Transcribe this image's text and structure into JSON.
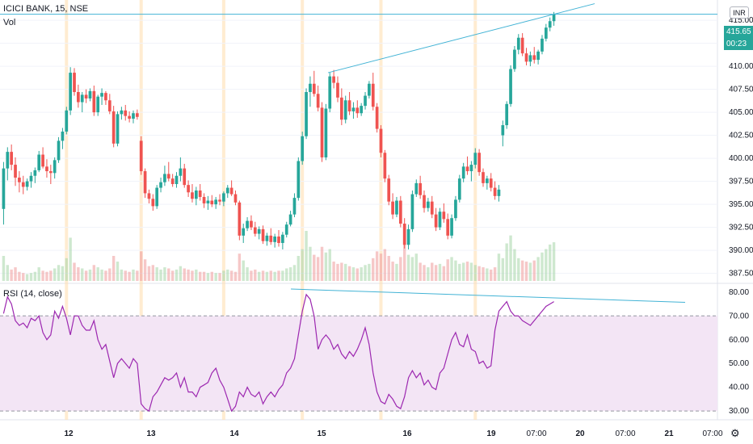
{
  "header": {
    "symbol": "ICICI BANK, 15, NSE",
    "volume_label": "Vol"
  },
  "rsi_header": {
    "label": "RSI (14, close)"
  },
  "currency_button": "INR",
  "price_tag": {
    "price": "415.65",
    "countdown": "00:23"
  },
  "settings_icon": "gear-icon",
  "colors": {
    "up": "#26a69a",
    "down": "#ef5350",
    "trendline": "#42b3d5",
    "rsi_line": "#9c27b0",
    "rsi_band": "#f3e5f5",
    "session": "#ffe0b2"
  },
  "chart_data": [
    {
      "type": "candlestick",
      "title": "ICICI BANK, 15, NSE",
      "ylim": [
        386.5,
        417.2
      ],
      "y_ticks": [
        "387.50",
        "390.00",
        "392.50",
        "395.00",
        "397.50",
        "400.00",
        "402.50",
        "405.00",
        "407.50",
        "410.00",
        "412.50",
        "415.00"
      ],
      "x_tick_labels": [
        "12",
        "13",
        "14",
        "15",
        "16",
        "19",
        "07:00",
        "20",
        "07:00",
        "21",
        "07:00"
      ],
      "ohlc": [
        [
          394.5,
          399.6,
          392.8,
          398.9
        ],
        [
          398.9,
          401.2,
          397.6,
          400.7
        ],
        [
          400.7,
          401.5,
          398.7,
          399.3
        ],
        [
          399.3,
          400.1,
          397.0,
          397.9
        ],
        [
          397.9,
          398.6,
          396.3,
          397.4
        ],
        [
          397.4,
          398.1,
          396.1,
          396.9
        ],
        [
          396.9,
          397.8,
          396.5,
          397.5
        ],
        [
          397.5,
          398.5,
          396.8,
          398.1
        ],
        [
          398.1,
          399.0,
          397.3,
          398.7
        ],
        [
          398.7,
          400.8,
          398.5,
          400.4
        ],
        [
          400.4,
          401.2,
          398.9,
          399.1
        ],
        [
          399.1,
          399.9,
          397.9,
          398.6
        ],
        [
          398.6,
          399.3,
          397.2,
          398.4
        ],
        [
          398.4,
          400.1,
          397.8,
          399.8
        ],
        [
          399.8,
          402.3,
          399.5,
          401.9
        ],
        [
          401.9,
          403.3,
          401.0,
          402.9
        ],
        [
          402.9,
          405.6,
          402.6,
          405.2
        ],
        [
          405.2,
          409.9,
          404.7,
          409.3
        ],
        [
          409.3,
          409.8,
          406.8,
          407.2
        ],
        [
          407.2,
          408.0,
          405.5,
          406.1
        ],
        [
          406.1,
          407.2,
          405.0,
          406.9
        ],
        [
          406.9,
          407.5,
          406.0,
          406.5
        ],
        [
          406.5,
          407.6,
          406.2,
          407.3
        ],
        [
          407.3,
          407.9,
          404.6,
          405.0
        ],
        [
          405.0,
          406.9,
          404.6,
          406.7
        ],
        [
          406.7,
          407.6,
          405.8,
          407.1
        ],
        [
          407.1,
          407.3,
          405.8,
          406.3
        ],
        [
          406.3,
          407.0,
          404.8,
          405.1
        ],
        [
          405.1,
          405.7,
          401.2,
          401.6
        ],
        [
          401.6,
          405.1,
          401.3,
          404.8
        ],
        [
          404.8,
          405.6,
          404.2,
          405.2
        ],
        [
          405.2,
          405.8,
          404.1,
          404.6
        ],
        [
          404.6,
          405.1,
          403.9,
          404.3
        ],
        [
          404.3,
          405.2,
          403.8,
          404.9
        ],
        [
          404.9,
          405.3,
          404.2,
          404.5
        ],
        [
          401.9,
          402.4,
          398.2,
          398.6
        ],
        [
          398.6,
          398.9,
          395.7,
          396.2
        ],
        [
          396.2,
          396.6,
          395.1,
          395.6
        ],
        [
          395.6,
          396.1,
          394.3,
          394.8
        ],
        [
          394.8,
          397.1,
          394.5,
          396.8
        ],
        [
          396.8,
          397.9,
          396.3,
          397.4
        ],
        [
          397.4,
          399.2,
          397.0,
          398.3
        ],
        [
          398.3,
          399.6,
          397.5,
          397.8
        ],
        [
          397.8,
          398.3,
          396.9,
          397.2
        ],
        [
          397.2,
          398.5,
          396.8,
          398.1
        ],
        [
          398.1,
          400.1,
          397.5,
          398.9
        ],
        [
          398.9,
          399.4,
          396.8,
          397.1
        ],
        [
          397.1,
          397.6,
          395.8,
          396.3
        ],
        [
          396.3,
          397.2,
          395.2,
          395.6
        ],
        [
          395.6,
          396.9,
          394.9,
          396.5
        ],
        [
          396.5,
          397.2,
          395.4,
          395.8
        ],
        [
          395.8,
          396.2,
          394.6,
          395.1
        ],
        [
          395.1,
          395.9,
          394.4,
          395.4
        ],
        [
          395.4,
          396.0,
          394.7,
          395.0
        ],
        [
          395.0,
          395.8,
          394.5,
          395.5
        ],
        [
          395.5,
          396.1,
          394.9,
          395.3
        ],
        [
          395.3,
          396.4,
          394.8,
          396.2
        ],
        [
          396.2,
          397.1,
          395.7,
          396.8
        ],
        [
          396.8,
          397.6,
          395.9,
          396.1
        ],
        [
          396.1,
          396.5,
          394.9,
          395.2
        ],
        [
          395.2,
          395.4,
          391.1,
          391.6
        ],
        [
          391.6,
          392.9,
          390.8,
          392.4
        ],
        [
          392.4,
          393.6,
          392.1,
          393.2
        ],
        [
          393.2,
          393.8,
          392.2,
          392.5
        ],
        [
          392.5,
          393.1,
          391.5,
          391.8
        ],
        [
          391.8,
          392.6,
          391.2,
          392.3
        ],
        [
          392.3,
          392.7,
          390.7,
          391.0
        ],
        [
          391.0,
          391.9,
          390.5,
          391.6
        ],
        [
          391.6,
          392.4,
          390.6,
          390.9
        ],
        [
          390.9,
          391.8,
          390.3,
          391.5
        ],
        [
          391.5,
          392.2,
          390.4,
          390.8
        ],
        [
          390.8,
          392.0,
          390.1,
          391.7
        ],
        [
          391.7,
          393.1,
          391.4,
          392.8
        ],
        [
          392.8,
          394.3,
          392.6,
          393.9
        ],
        [
          393.9,
          396.2,
          393.6,
          395.7
        ],
        [
          395.7,
          400.1,
          395.4,
          399.7
        ],
        [
          399.7,
          402.9,
          399.3,
          402.4
        ],
        [
          402.4,
          407.6,
          402.1,
          407.2
        ],
        [
          407.2,
          408.9,
          405.6,
          408.1
        ],
        [
          408.1,
          409.5,
          406.7,
          407.0
        ],
        [
          407.0,
          407.9,
          405.1,
          405.5
        ],
        [
          405.5,
          406.1,
          399.6,
          400.1
        ],
        [
          400.1,
          405.9,
          399.8,
          405.4
        ],
        [
          405.4,
          409.3,
          405.0,
          408.9
        ],
        [
          408.9,
          409.6,
          407.6,
          408.2
        ],
        [
          408.2,
          408.9,
          406.1,
          406.6
        ],
        [
          406.6,
          407.6,
          403.6,
          404.2
        ],
        [
          404.2,
          406.8,
          403.8,
          406.3
        ],
        [
          406.3,
          407.2,
          404.7,
          405.1
        ],
        [
          405.1,
          406.1,
          404.3,
          405.5
        ],
        [
          405.5,
          406.3,
          404.4,
          404.9
        ],
        [
          404.9,
          406.0,
          404.6,
          405.7
        ],
        [
          405.7,
          407.2,
          405.3,
          406.8
        ],
        [
          406.8,
          408.4,
          406.5,
          408.1
        ],
        [
          408.1,
          409.3,
          405.2,
          405.6
        ],
        [
          405.6,
          406.0,
          402.8,
          403.2
        ],
        [
          403.2,
          403.6,
          400.1,
          400.6
        ],
        [
          400.6,
          400.9,
          397.4,
          397.8
        ],
        [
          397.8,
          398.2,
          394.9,
          395.3
        ],
        [
          395.3,
          396.2,
          393.4,
          393.9
        ],
        [
          393.9,
          395.8,
          393.6,
          395.4
        ],
        [
          395.4,
          395.9,
          392.5,
          392.9
        ],
        [
          392.9,
          393.5,
          390.2,
          390.6
        ],
        [
          390.6,
          392.8,
          390.1,
          392.3
        ],
        [
          392.3,
          396.5,
          392.0,
          396.1
        ],
        [
          396.1,
          397.7,
          395.8,
          397.3
        ],
        [
          397.3,
          398.1,
          395.6,
          396.0
        ],
        [
          396.0,
          396.5,
          394.1,
          394.6
        ],
        [
          394.6,
          395.7,
          394.2,
          395.3
        ],
        [
          395.3,
          395.9,
          393.5,
          393.9
        ],
        [
          393.9,
          394.6,
          392.1,
          392.5
        ],
        [
          392.5,
          394.6,
          392.2,
          394.2
        ],
        [
          394.2,
          395.1,
          393.0,
          393.4
        ],
        [
          393.4,
          394.0,
          391.2,
          391.6
        ],
        [
          391.6,
          393.9,
          391.3,
          393.5
        ],
        [
          393.5,
          395.9,
          393.2,
          395.5
        ],
        [
          395.5,
          398.2,
          395.2,
          397.8
        ],
        [
          397.8,
          399.5,
          397.4,
          399.1
        ],
        [
          399.1,
          400.2,
          398.2,
          398.6
        ],
        [
          398.6,
          399.7,
          397.5,
          399.3
        ],
        [
          399.3,
          401.1,
          398.9,
          400.6
        ],
        [
          400.6,
          401.0,
          398.1,
          398.5
        ],
        [
          398.5,
          398.9,
          396.9,
          397.3
        ],
        [
          397.3,
          398.1,
          396.6,
          397.8
        ],
        [
          397.8,
          398.4,
          396.4,
          396.8
        ],
        [
          396.8,
          397.5,
          395.5,
          395.9
        ],
        [
          395.9,
          397.1,
          395.3,
          396.6
        ],
        [
          402.5,
          404.1,
          401.3,
          403.6
        ],
        [
          403.6,
          406.2,
          403.2,
          405.9
        ],
        [
          405.9,
          410.1,
          405.6,
          409.7
        ],
        [
          409.7,
          412.2,
          409.4,
          411.8
        ],
        [
          411.8,
          413.5,
          411.3,
          413.1
        ],
        [
          413.1,
          413.6,
          411.1,
          411.4
        ],
        [
          411.4,
          412.0,
          410.1,
          410.5
        ],
        [
          410.5,
          411.6,
          410.0,
          411.2
        ],
        [
          411.2,
          412.1,
          410.3,
          410.7
        ],
        [
          410.7,
          411.8,
          410.2,
          411.6
        ],
        [
          411.6,
          413.4,
          411.3,
          413.0
        ],
        [
          413.0,
          414.6,
          412.7,
          414.2
        ],
        [
          414.2,
          415.3,
          413.8,
          414.9
        ],
        [
          414.9,
          415.9,
          414.4,
          415.65
        ]
      ],
      "session_marks": [
        "12",
        "13",
        "14",
        "15",
        "16",
        "19"
      ],
      "trendlines": [
        {
          "from": [
            406,
            409.3
          ],
          "to": [
            736,
            416.8
          ]
        },
        {
          "from": [
            0,
            415.65
          ],
          "to": [
            888,
            415.65
          ]
        }
      ]
    },
    {
      "type": "bar",
      "title": "Vol",
      "values": [
        22,
        14,
        10,
        12,
        8,
        7,
        6,
        7,
        8,
        12,
        9,
        8,
        9,
        11,
        14,
        13,
        20,
        38,
        16,
        12,
        11,
        9,
        10,
        14,
        12,
        10,
        9,
        11,
        22,
        17,
        10,
        9,
        8,
        10,
        9,
        26,
        19,
        13,
        14,
        12,
        10,
        12,
        11,
        9,
        10,
        13,
        11,
        10,
        9,
        10,
        8,
        8,
        7,
        8,
        7,
        7,
        9,
        10,
        9,
        8,
        24,
        18,
        12,
        9,
        10,
        8,
        9,
        8,
        9,
        8,
        9,
        9,
        11,
        12,
        14,
        22,
        28,
        44,
        30,
        23,
        21,
        30,
        25,
        28,
        17,
        15,
        16,
        15,
        13,
        12,
        11,
        12,
        14,
        15,
        20,
        26,
        24,
        28,
        22,
        17,
        15,
        21,
        32,
        23,
        21,
        24,
        16,
        14,
        12,
        16,
        14,
        15,
        13,
        19,
        21,
        18,
        15,
        16,
        17,
        16,
        14,
        13,
        12,
        11,
        10,
        12,
        24,
        20,
        33,
        40,
        28,
        20,
        18,
        17,
        16,
        18,
        21,
        25,
        28,
        32,
        34
      ]
    },
    {
      "type": "line",
      "title": "RSI (14, close)",
      "ylim": [
        27,
        83
      ],
      "y_ticks": [
        "30.00",
        "40.00",
        "50.00",
        "60.00",
        "70.00",
        "80.00"
      ],
      "bands": [
        30,
        70
      ],
      "values": [
        71,
        78,
        75,
        68,
        66,
        67,
        65,
        69,
        68,
        70,
        63,
        60,
        62,
        72,
        69,
        74,
        69,
        62,
        70,
        70,
        66,
        64,
        64,
        68,
        60,
        56,
        58,
        51,
        44,
        50,
        52,
        50,
        48,
        52,
        50,
        33,
        31,
        30,
        36,
        38,
        41,
        44,
        43,
        44,
        46,
        40,
        44,
        38,
        38,
        36,
        40,
        41,
        42,
        46,
        48,
        43,
        40,
        35,
        30,
        32,
        38,
        36,
        40,
        37,
        36,
        38,
        33,
        36,
        38,
        36,
        39,
        41,
        46,
        48,
        52,
        62,
        72,
        79,
        77,
        70,
        56,
        60,
        62,
        60,
        56,
        58,
        54,
        52,
        55,
        53,
        56,
        60,
        65,
        58,
        46,
        38,
        34,
        33,
        37,
        35,
        32,
        31,
        36,
        44,
        47,
        44,
        46,
        41,
        43,
        40,
        39,
        46,
        48,
        54,
        60,
        63,
        58,
        57,
        62,
        56,
        55,
        50,
        51,
        48,
        49,
        64,
        72,
        74,
        76,
        72,
        70,
        70,
        68,
        67,
        66,
        68,
        70,
        72,
        74,
        75,
        76
      ],
      "trendline": {
        "from": [
          360,
          81.3
        ],
        "to": [
          848,
          75.7
        ]
      }
    }
  ]
}
